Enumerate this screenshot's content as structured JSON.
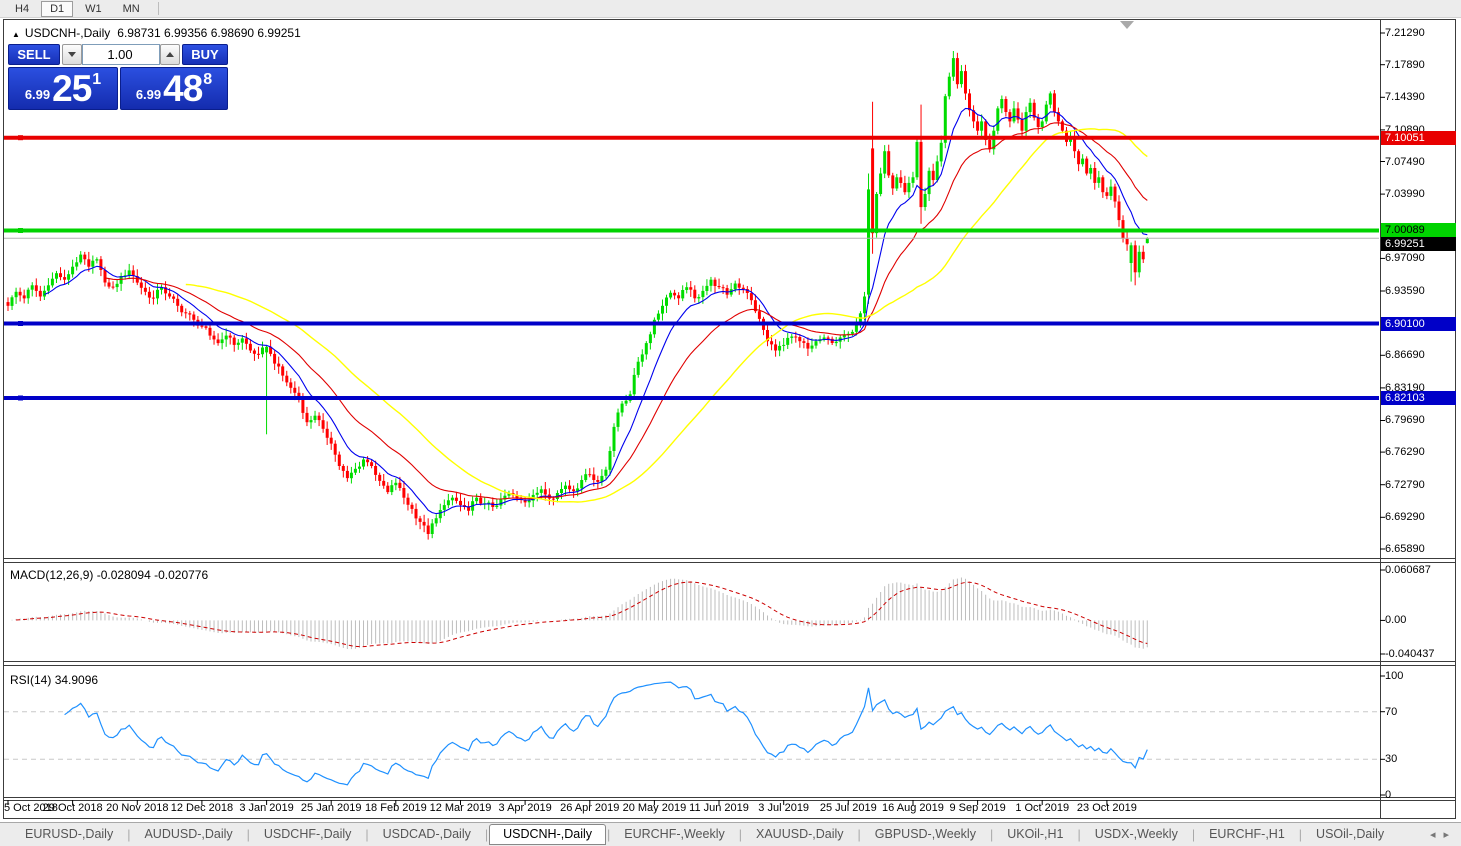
{
  "window": {
    "toolbar": {
      "timeframes": [
        "H4",
        "D1",
        "W1",
        "MN"
      ],
      "active": "D1"
    }
  },
  "chart": {
    "title": "USDCNH-,Daily",
    "ohlc_values": "6.98731 6.99356 6.98690 6.99251",
    "trade_panel": {
      "sell_label": "SELL",
      "buy_label": "BUY",
      "volume": "1.00",
      "sell_price_prefix": "6.99",
      "sell_price_big": "25",
      "sell_price_sup": "1",
      "buy_price_prefix": "6.99",
      "buy_price_big": "48",
      "buy_price_sup": "8"
    },
    "y_ticks": [
      "7.21290",
      "7.17890",
      "7.14390",
      "7.10890",
      "7.07490",
      "7.03990",
      "6.97090",
      "6.93590",
      "6.86690",
      "6.83190",
      "6.79690",
      "6.76290",
      "6.72790",
      "6.69290",
      "6.65890"
    ],
    "levels": [
      {
        "price": "7.10051",
        "value": 7.10051,
        "color": "#e80000",
        "text": "#ffffff"
      },
      {
        "price": "7.00089",
        "value": 7.00089,
        "color": "#00d300",
        "text": "#000000"
      },
      {
        "price": "6.90100",
        "value": 6.901,
        "color": "#0000c8",
        "text": "#ffffff"
      },
      {
        "price": "6.82103",
        "value": 6.82103,
        "color": "#0000c8",
        "text": "#ffffff"
      }
    ],
    "current_price": {
      "label": "6.99251",
      "value": 6.99251
    },
    "macd": {
      "label": "MACD(12,26,9)",
      "values": "-0.028094 -0.020776",
      "axis_top": "0.060687",
      "axis_zero": "0.00",
      "axis_bottom": "-0.040437"
    },
    "rsi": {
      "label": "RSI(14)",
      "value": "34.9096",
      "axis": [
        "100",
        "70",
        "30",
        "0"
      ]
    }
  },
  "chart_data": {
    "type": "candlestick",
    "symbol": "USDCNH-",
    "timeframe": "Daily",
    "bar_count": 283,
    "ohlc_last": {
      "open": 6.98731,
      "high": 6.99356,
      "low": 6.9869,
      "close": 6.99251
    },
    "price_axis": {
      "top": 7.2129,
      "bottom": 6.6589
    },
    "horizontal_levels": [
      7.10051,
      7.00089,
      6.901,
      6.82103
    ],
    "dates": [
      "5 Oct 2018",
      "29 Oct 2018",
      "20 Nov 2018",
      "12 Dec 2018",
      "3 Jan 2019",
      "25 Jan 2019",
      "18 Feb 2019",
      "12 Mar 2019",
      "3 Apr 2019",
      "26 Apr 2019",
      "20 May 2019",
      "11 Jun 2019",
      "3 Jul 2019",
      "25 Jul 2019",
      "16 Aug 2019",
      "9 Sep 2019",
      "1 Oct 2019",
      "23 Oct 2019"
    ],
    "close_anchors": [
      [
        0,
        6.92
      ],
      [
        2,
        6.935
      ],
      [
        4,
        6.928
      ],
      [
        6,
        6.942
      ],
      [
        8,
        6.93
      ],
      [
        10,
        6.942
      ],
      [
        12,
        6.955
      ],
      [
        14,
        6.948
      ],
      [
        16,
        6.962
      ],
      [
        18,
        6.975
      ],
      [
        20,
        6.962
      ],
      [
        22,
        6.97
      ],
      [
        24,
        6.945
      ],
      [
        26,
        6.94
      ],
      [
        28,
        6.952
      ],
      [
        30,
        6.958
      ],
      [
        32,
        6.945
      ],
      [
        34,
        6.935
      ],
      [
        36,
        6.928
      ],
      [
        38,
        6.94
      ],
      [
        40,
        6.93
      ],
      [
        42,
        6.92
      ],
      [
        44,
        6.912
      ],
      [
        46,
        6.905
      ],
      [
        48,
        6.898
      ],
      [
        50,
        6.888
      ],
      [
        52,
        6.88
      ],
      [
        54,
        6.888
      ],
      [
        56,
        6.878
      ],
      [
        58,
        6.885
      ],
      [
        60,
        6.872
      ],
      [
        62,
        6.868
      ],
      [
        64,
        6.876
      ],
      [
        66,
        6.858
      ],
      [
        68,
        6.845
      ],
      [
        70,
        6.832
      ],
      [
        72,
        6.822
      ],
      [
        74,
        6.795
      ],
      [
        76,
        6.802
      ],
      [
        78,
        6.788
      ],
      [
        80,
        6.772
      ],
      [
        82,
        6.748
      ],
      [
        84,
        6.735
      ],
      [
        86,
        6.745
      ],
      [
        88,
        6.755
      ],
      [
        90,
        6.748
      ],
      [
        92,
        6.732
      ],
      [
        94,
        6.72
      ],
      [
        96,
        6.73
      ],
      [
        98,
        6.714
      ],
      [
        100,
        6.702
      ],
      [
        102,
        6.688
      ],
      [
        104,
        6.675
      ],
      [
        106,
        6.692
      ],
      [
        108,
        6.706
      ],
      [
        110,
        6.714
      ],
      [
        112,
        6.706
      ],
      [
        114,
        6.7
      ],
      [
        116,
        6.714
      ],
      [
        118,
        6.708
      ],
      [
        120,
        6.704
      ],
      [
        122,
        6.712
      ],
      [
        124,
        6.719
      ],
      [
        126,
        6.713
      ],
      [
        128,
        6.709
      ],
      [
        130,
        6.717
      ],
      [
        132,
        6.723
      ],
      [
        134,
        6.713
      ],
      [
        136,
        6.719
      ],
      [
        138,
        6.727
      ],
      [
        140,
        6.721
      ],
      [
        142,
        6.733
      ],
      [
        144,
        6.739
      ],
      [
        146,
        6.731
      ],
      [
        148,
        6.744
      ],
      [
        150,
        6.79
      ],
      [
        152,
        6.815
      ],
      [
        154,
        6.825
      ],
      [
        156,
        6.86
      ],
      [
        158,
        6.88
      ],
      [
        160,
        6.905
      ],
      [
        162,
        6.92
      ],
      [
        164,
        6.934
      ],
      [
        166,
        6.928
      ],
      [
        168,
        6.94
      ],
      [
        170,
        6.928
      ],
      [
        172,
        6.936
      ],
      [
        174,
        6.948
      ],
      [
        176,
        6.94
      ],
      [
        178,
        6.932
      ],
      [
        180,
        6.944
      ],
      [
        182,
        6.938
      ],
      [
        184,
        6.926
      ],
      [
        186,
        6.906
      ],
      [
        188,
        6.882
      ],
      [
        190,
        6.872
      ],
      [
        192,
        6.878
      ],
      [
        194,
        6.887
      ],
      [
        196,
        6.882
      ],
      [
        198,
        6.874
      ],
      [
        200,
        6.882
      ],
      [
        202,
        6.886
      ],
      [
        204,
        6.88
      ],
      [
        206,
        6.886
      ],
      [
        208,
        6.89
      ],
      [
        210,
        6.9
      ],
      [
        212,
        6.93
      ],
      [
        213,
        7.045
      ],
      [
        214,
        6.998
      ],
      [
        215,
        7.04
      ],
      [
        216,
        7.062
      ],
      [
        217,
        7.086
      ],
      [
        218,
        7.06
      ],
      [
        219,
        7.046
      ],
      [
        220,
        7.058
      ],
      [
        222,
        7.042
      ],
      [
        224,
        7.058
      ],
      [
        225,
        7.096
      ],
      [
        226,
        7.026
      ],
      [
        227,
        7.04
      ],
      [
        228,
        7.065
      ],
      [
        229,
        7.055
      ],
      [
        230,
        7.075
      ],
      [
        231,
        7.095
      ],
      [
        232,
        7.145
      ],
      [
        233,
        7.166
      ],
      [
        234,
        7.186
      ],
      [
        235,
        7.158
      ],
      [
        236,
        7.172
      ],
      [
        237,
        7.148
      ],
      [
        238,
        7.13
      ],
      [
        239,
        7.118
      ],
      [
        240,
        7.108
      ],
      [
        241,
        7.118
      ],
      [
        242,
        7.098
      ],
      [
        243,
        7.088
      ],
      [
        244,
        7.108
      ],
      [
        245,
        7.132
      ],
      [
        246,
        7.142
      ],
      [
        247,
        7.128
      ],
      [
        248,
        7.118
      ],
      [
        249,
        7.132
      ],
      [
        250,
        7.12
      ],
      [
        251,
        7.108
      ],
      [
        252,
        7.128
      ],
      [
        253,
        7.138
      ],
      [
        254,
        7.122
      ],
      [
        255,
        7.112
      ],
      [
        256,
        7.118
      ],
      [
        257,
        7.136
      ],
      [
        258,
        7.148
      ],
      [
        259,
        7.128
      ],
      [
        260,
        7.118
      ],
      [
        261,
        7.108
      ],
      [
        262,
        7.096
      ],
      [
        263,
        7.102
      ],
      [
        264,
        7.086
      ],
      [
        265,
        7.072
      ],
      [
        266,
        7.078
      ],
      [
        267,
        7.062
      ],
      [
        268,
        7.068
      ],
      [
        269,
        7.052
      ],
      [
        270,
        7.058
      ],
      [
        271,
        7.042
      ],
      [
        272,
        7.038
      ],
      [
        273,
        7.048
      ],
      [
        274,
        7.032
      ],
      [
        275,
        7.012
      ],
      [
        276,
        6.992
      ],
      [
        277,
        6.986
      ],
      [
        278,
        6.985
      ],
      [
        279,
        6.956
      ],
      [
        280,
        6.978
      ],
      [
        281,
        6.97
      ],
      [
        282,
        6.99251
      ]
    ],
    "candle_overrides": {
      "64": [
        6.87,
        6.878,
        6.782,
        6.876
      ],
      "213": [
        6.932,
        7.062,
        6.922,
        7.045
      ],
      "214": [
        7.089,
        7.139,
        6.976,
        6.998
      ],
      "226": [
        7.096,
        7.136,
        7.008,
        7.026
      ],
      "278": [
        6.966,
        6.988,
        6.946,
        6.985
      ],
      "279": [
        6.985,
        6.99,
        6.942,
        6.956
      ],
      "282": [
        6.98731,
        6.99356,
        6.9869,
        6.99251
      ]
    },
    "moving_averages": [
      {
        "period": 10,
        "method": "ema",
        "color": "#0000ee"
      },
      {
        "period": 25,
        "method": "ema",
        "color": "#e00000"
      },
      {
        "period": 45,
        "method": "sma",
        "color": "#ffff00"
      }
    ],
    "macd": {
      "fast": 12,
      "slow": 26,
      "signal_period": 9,
      "last_main": -0.028094,
      "last_signal": -0.020776,
      "range": [
        -0.040437,
        0.060687
      ]
    },
    "rsi": {
      "period": 14,
      "last": 34.9096,
      "levels": [
        30,
        70
      ]
    }
  },
  "tabs": {
    "items": [
      "EURUSD-,Daily",
      "AUDUSD-,Daily",
      "USDCHF-,Daily",
      "USDCAD-,Daily",
      "USDCNH-,Daily",
      "EURCHF-,Weekly",
      "XAUUSD-,Daily",
      "GBPUSD-,Weekly",
      "UKOil-,H1",
      "USDX-,Weekly",
      "EURCHF-,H1",
      "USOil-,Daily"
    ],
    "active": "USDCNH-,Daily"
  },
  "colors": {
    "bull": "#00dc00",
    "bear": "#ff0000",
    "macd_hist": "#bdbdbd",
    "macd_signal": "#cc0000",
    "rsi_line": "#1e90ff",
    "current_price_line": "#b4b4b4",
    "trade_panel_blue": "#1c3fd6"
  }
}
